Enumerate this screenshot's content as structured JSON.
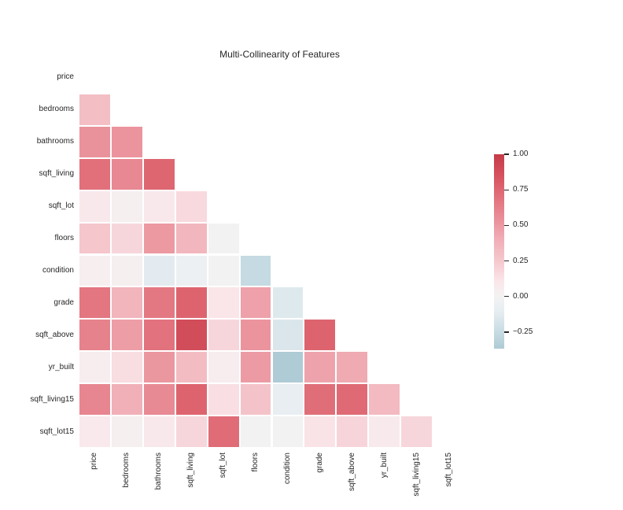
{
  "title": "Multi-Collinearity of Features",
  "chart_data": {
    "type": "heatmap",
    "subtype": "correlation-matrix-lower-triangle",
    "title": "Multi-Collinearity of Features",
    "features": [
      "price",
      "bedrooms",
      "bathrooms",
      "sqft_living",
      "sqft_lot",
      "floors",
      "condition",
      "grade",
      "sqft_above",
      "yr_built",
      "sqft_living15",
      "sqft_lot15"
    ],
    "mask": "upper triangle including diagonal is hidden (white)",
    "matrix_lower_triangle_note": "row i holds correlation of features[i] with features[0..i-1]",
    "matrix": [
      [],
      [
        0.31
      ],
      [
        0.53,
        0.52
      ],
      [
        0.7,
        0.58,
        0.75
      ],
      [
        0.09,
        0.03,
        0.09,
        0.17
      ],
      [
        0.26,
        0.18,
        0.5,
        0.35,
        -0.01
      ],
      [
        0.04,
        0.03,
        -0.12,
        -0.06,
        -0.01,
        -0.26
      ],
      [
        0.67,
        0.36,
        0.66,
        0.76,
        0.11,
        0.46,
        -0.14
      ],
      [
        0.61,
        0.48,
        0.69,
        0.88,
        0.18,
        0.52,
        -0.16,
        0.76
      ],
      [
        0.05,
        0.15,
        0.51,
        0.32,
        0.05,
        0.49,
        -0.36,
        0.45,
        0.42
      ],
      [
        0.59,
        0.39,
        0.57,
        0.76,
        0.14,
        0.28,
        -0.09,
        0.71,
        0.73,
        0.33
      ],
      [
        0.08,
        0.03,
        0.09,
        0.18,
        0.72,
        -0.01,
        0.0,
        0.12,
        0.19,
        0.07,
        0.18
      ]
    ],
    "grid": false,
    "legend": "colorbar-right",
    "colorbar": {
      "vmax": 1.0,
      "vmin": -0.366,
      "tick_values": [
        1.0,
        0.75,
        0.5,
        0.25,
        0.0,
        -0.25
      ],
      "tick_labels": [
        "1.00",
        "0.75",
        "0.50",
        "0.25",
        "0.00",
        "−0.25"
      ]
    },
    "colormap": {
      "name": "red-blue-diverging",
      "anchors": [
        {
          "v": -0.37,
          "color": "#accad5"
        },
        {
          "v": -0.25,
          "color": "#c7dbe3"
        },
        {
          "v": -0.1,
          "color": "#e7eef2"
        },
        {
          "v": 0.0,
          "color": "#f3f2f2"
        },
        {
          "v": 0.1,
          "color": "#fae7ea"
        },
        {
          "v": 0.25,
          "color": "#f5c8ce"
        },
        {
          "v": 0.4,
          "color": "#f1aeb6"
        },
        {
          "v": 0.55,
          "color": "#e98e98"
        },
        {
          "v": 0.7,
          "color": "#e1707b"
        },
        {
          "v": 0.85,
          "color": "#d6525e"
        },
        {
          "v": 1.0,
          "color": "#c43b48"
        }
      ]
    },
    "background_color": "#ffffff",
    "gridline_color": "#ffffff",
    "text_color": "#262626"
  }
}
